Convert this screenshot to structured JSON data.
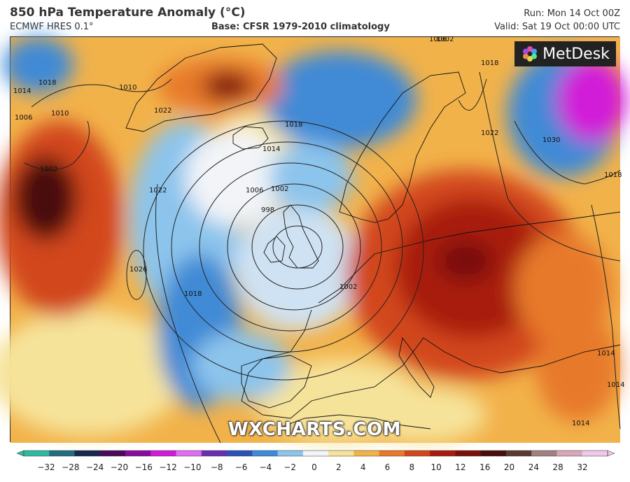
{
  "header": {
    "title": "850 hPa Temperature Anomaly (°C)",
    "model": "ECMWF HRES 0.1°",
    "base": "Base: CFSR 1979-2010 climatology",
    "run": "Run: Mon 14 Oct 00Z",
    "valid": "Valid: Sat 19 Oct 00:00 UTC"
  },
  "branding": {
    "logo_text": "MetDesk",
    "watermark": "WXCHARTS.COM"
  },
  "map": {
    "region": "North Atlantic and Europe",
    "low_center_label": "998",
    "isobar_labels": [
      "1010",
      "1018",
      "1022",
      "1014",
      "1010",
      "1006",
      "1002",
      "1018",
      "1014",
      "1006",
      "1002",
      "998",
      "1022",
      "1026",
      "1018",
      "1002",
      "1006",
      "1018",
      "1022",
      "1030",
      "1018",
      "1014",
      "1014",
      "1014",
      "1002"
    ]
  },
  "legend": {
    "ticks": [
      "−32",
      "−28",
      "−24",
      "−20",
      "−16",
      "−12",
      "−10",
      "−8",
      "−6",
      "−4",
      "−2",
      "0",
      "2",
      "4",
      "6",
      "8",
      "10",
      "12",
      "16",
      "20",
      "24",
      "28",
      "32"
    ],
    "colors": [
      "#2fb9a0",
      "#1f6f7e",
      "#17294f",
      "#4a0a5e",
      "#8a0aa0",
      "#d11ad8",
      "#e06cf0",
      "#6a2fb0",
      "#2c52b8",
      "#3f8ad6",
      "#8cc4ec",
      "#f2f4f8",
      "#f6e39a",
      "#f2b24a",
      "#e7792a",
      "#d2461c",
      "#a81c10",
      "#7a0f0b",
      "#4a0d0d",
      "#5b3a33",
      "#a08080",
      "#d8a8b8",
      "#f0c8e8"
    ]
  }
}
